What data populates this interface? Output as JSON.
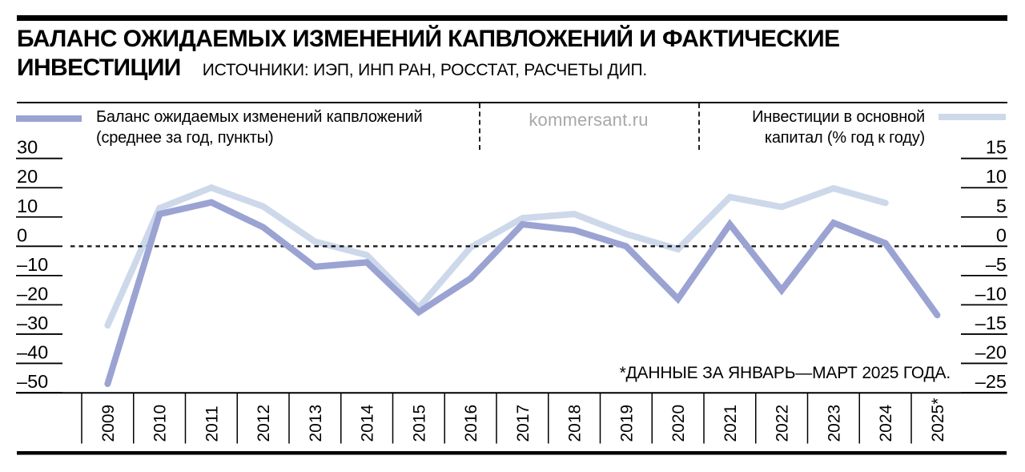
{
  "header": {
    "title_line1": "БАЛАНС ОЖИДАЕМЫХ ИЗМЕНЕНИЙ КАПВЛОЖЕНИЙ И ФАКТИЧЕСКИЕ",
    "title_line2": "ИНВЕСТИЦИИ",
    "sources": "ИСТОЧНИКИ: ИЭП, ИНП РАН, РОССТАТ, РАСЧЕТЫ ДИП."
  },
  "legend": {
    "left": {
      "label_line1": "Баланс ожидаемых изменений капвложений",
      "label_line2": "(среднее за год, пункты)"
    },
    "right": {
      "label_line1": "Инвестиции в основной",
      "label_line2": "капитал (% год к году)"
    }
  },
  "watermark": "kommersant.ru",
  "footnote": "*ДАННЫЕ ЗА ЯНВАРЬ—МАРТ 2025 ГОДА.",
  "chart_data": {
    "type": "line",
    "categories": [
      "2009",
      "2010",
      "2011",
      "2012",
      "2013",
      "2014",
      "2015",
      "2016",
      "2017",
      "2018",
      "2019",
      "2020",
      "2021",
      "2022",
      "2023",
      "2024",
      "2025*"
    ],
    "series": [
      {
        "name": "Баланс ожидаемых изменений капвложений (среднее за год, пункты)",
        "axis": "left",
        "color": "#9aa3d2",
        "values": [
          -47,
          11,
          15,
          6.5,
          -7,
          -5.5,
          -22.5,
          -11,
          7.5,
          5.5,
          0,
          -18,
          7.5,
          -15,
          8,
          1,
          -23.5
        ]
      },
      {
        "name": "Инвестиции в основной капитал (% год к году)",
        "axis": "right",
        "color": "#cdd9ea",
        "values": [
          -13.5,
          6.5,
          10,
          6.8,
          0.8,
          -1.5,
          -10.5,
          -0.2,
          4.8,
          5.5,
          2.1,
          -0.5,
          8.4,
          6.7,
          9.9,
          7.4,
          null
        ]
      }
    ],
    "left_axis": {
      "ticks": [
        "30",
        "20",
        "10",
        "0",
        "–10",
        "–20",
        "–30",
        "–40",
        "–50"
      ],
      "values": [
        30,
        20,
        10,
        0,
        -10,
        -20,
        -30,
        -40,
        -50
      ],
      "range": [
        -50,
        30
      ]
    },
    "right_axis": {
      "ticks": [
        "15",
        "10",
        "5",
        "0",
        "–5",
        "–10",
        "–15",
        "–20",
        "–25"
      ],
      "values": [
        15,
        10,
        5,
        0,
        -5,
        -10,
        -15,
        -20,
        -25
      ],
      "range": [
        -25,
        15
      ]
    },
    "zero_line": "dashed",
    "grid": "vertical year separators",
    "legend_position": "top"
  }
}
